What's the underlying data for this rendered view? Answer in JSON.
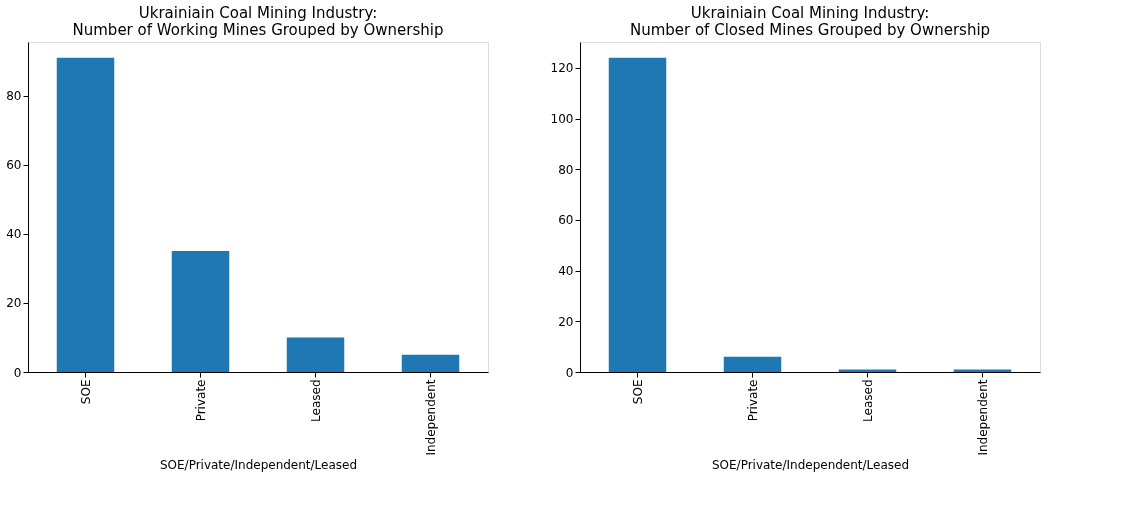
{
  "chart_data": [
    {
      "type": "bar",
      "title": "Ukrainiain Coal Mining Industry:\nNumber of Working Mines Grouped by Ownership",
      "xlabel": "SOE/Private/Independent/Leased",
      "categories": [
        "SOE",
        "Private",
        "Leased",
        "Independent"
      ],
      "values": [
        91,
        35,
        10,
        5
      ],
      "color": "#1f77b4",
      "ylim": [
        0,
        95.55
      ],
      "yticks": [
        0,
        20,
        40,
        60,
        80
      ],
      "grid": false
    },
    {
      "type": "bar",
      "title": "Ukrainiain Coal Mining Industry:\nNumber of Closed Mines Grouped by Ownership",
      "xlabel": "SOE/Private/Independent/Leased",
      "categories": [
        "SOE",
        "Private",
        "Leased",
        "Independent"
      ],
      "values": [
        124,
        6,
        1,
        1
      ],
      "color": "#1f77b4",
      "ylim": [
        0,
        130.2
      ],
      "yticks": [
        0,
        20,
        40,
        60,
        80,
        100,
        120
      ],
      "grid": false
    }
  ]
}
